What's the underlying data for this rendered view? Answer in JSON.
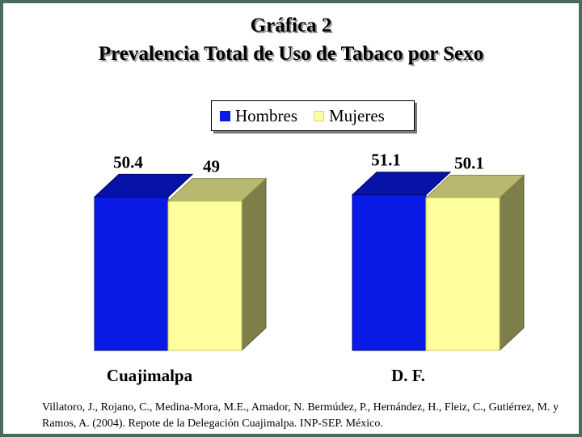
{
  "title_line1": "Gráfica 2",
  "title_line2": "Prevalencia Total de Uso de Tabaco por Sexo",
  "source_text": "Villatoro, J., Rojano, C., Medina-Mora, M.E., Amador, N. Bermúdez, P., Hernández, H., Fleiz, C., Gutiérrez, M. y Ramos, A. (2004). Repote de la Delegación Cuajimalpa. INP-SEP. México.",
  "colors": {
    "hombres_front": "#0a1be8",
    "hombres_top": "#0612a8",
    "mujeres_front": "#fefe9e",
    "mujeres_top": "#b8b870",
    "side": "#7e7e48",
    "frame": "#4a6b5c"
  },
  "chart_data": {
    "type": "bar",
    "title": "Gráfica 2 Prevalencia Total de Uso de Tabaco por Sexo",
    "categories": [
      "Cuajimalpa",
      "D. F."
    ],
    "series": [
      {
        "name": "Hombres",
        "values": [
          50.4,
          51.1
        ]
      },
      {
        "name": "Mujeres",
        "values": [
          49,
          50.1
        ]
      }
    ],
    "value_labels": [
      [
        "50.4",
        "51.1"
      ],
      [
        "49",
        "50.1"
      ]
    ],
    "xlabel": "",
    "ylabel": "",
    "grid": false,
    "legend": "top-center",
    "style": "3d"
  }
}
